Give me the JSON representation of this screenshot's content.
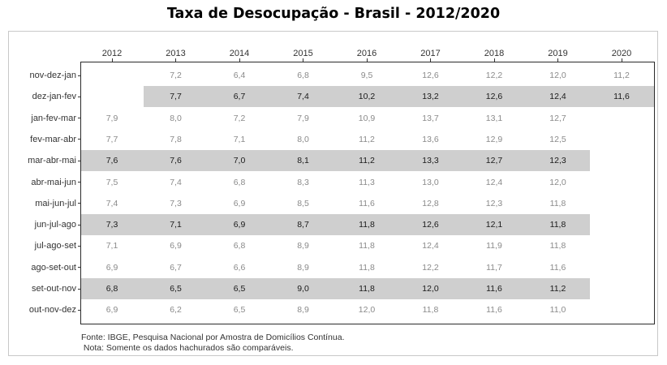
{
  "title": "Taxa de Desocupação - Brasil - 2012/2020",
  "footer": {
    "source": "Fonte: IBGE, Pesquisa Nacional por Amostra de Domicílios Contínua.",
    "note": " Nota: Somente os dados hachurados são comparáveis."
  },
  "colors": {
    "band": "#cfcfcf",
    "plain_text": "#8a8a8a",
    "highlight_text": "#1a1a1a"
  },
  "chart_data": {
    "type": "table",
    "columns": [
      "2012",
      "2013",
      "2014",
      "2015",
      "2016",
      "2017",
      "2018",
      "2019",
      "2020"
    ],
    "rows": [
      {
        "label": "nov-dez-jan",
        "highlighted": false,
        "values": [
          "",
          "7,2",
          "6,4",
          "6,8",
          "9,5",
          "12,6",
          "12,2",
          "12,0",
          "11,2"
        ]
      },
      {
        "label": "dez-jan-fev",
        "highlighted": true,
        "values": [
          "",
          "7,7",
          "6,7",
          "7,4",
          "10,2",
          "13,2",
          "12,6",
          "12,4",
          "11,6"
        ]
      },
      {
        "label": "jan-fev-mar",
        "highlighted": false,
        "values": [
          "7,9",
          "8,0",
          "7,2",
          "7,9",
          "10,9",
          "13,7",
          "13,1",
          "12,7",
          ""
        ]
      },
      {
        "label": "fev-mar-abr",
        "highlighted": false,
        "values": [
          "7,7",
          "7,8",
          "7,1",
          "8,0",
          "11,2",
          "13,6",
          "12,9",
          "12,5",
          ""
        ]
      },
      {
        "label": "mar-abr-mai",
        "highlighted": true,
        "values": [
          "7,6",
          "7,6",
          "7,0",
          "8,1",
          "11,2",
          "13,3",
          "12,7",
          "12,3",
          ""
        ]
      },
      {
        "label": "abr-mai-jun",
        "highlighted": false,
        "values": [
          "7,5",
          "7,4",
          "6,8",
          "8,3",
          "11,3",
          "13,0",
          "12,4",
          "12,0",
          ""
        ]
      },
      {
        "label": "mai-jun-jul",
        "highlighted": false,
        "values": [
          "7,4",
          "7,3",
          "6,9",
          "8,5",
          "11,6",
          "12,8",
          "12,3",
          "11,8",
          ""
        ]
      },
      {
        "label": "jun-jul-ago",
        "highlighted": true,
        "values": [
          "7,3",
          "7,1",
          "6,9",
          "8,7",
          "11,8",
          "12,6",
          "12,1",
          "11,8",
          ""
        ]
      },
      {
        "label": "jul-ago-set",
        "highlighted": false,
        "values": [
          "7,1",
          "6,9",
          "6,8",
          "8,9",
          "11,8",
          "12,4",
          "11,9",
          "11,8",
          ""
        ]
      },
      {
        "label": "ago-set-out",
        "highlighted": false,
        "values": [
          "6,9",
          "6,7",
          "6,6",
          "8,9",
          "11,8",
          "12,2",
          "11,7",
          "11,6",
          ""
        ]
      },
      {
        "label": "set-out-nov",
        "highlighted": true,
        "values": [
          "6,8",
          "6,5",
          "6,5",
          "9,0",
          "11,8",
          "12,0",
          "11,6",
          "11,2",
          ""
        ]
      },
      {
        "label": "out-nov-dez",
        "highlighted": false,
        "values": [
          "6,9",
          "6,2",
          "6,5",
          "8,9",
          "12,0",
          "11,8",
          "11,6",
          "11,0",
          ""
        ]
      }
    ]
  }
}
